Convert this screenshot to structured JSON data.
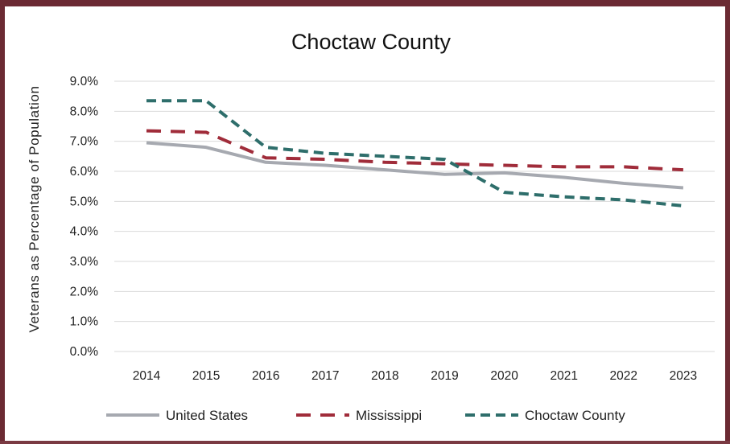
{
  "colors": {
    "frame": "#6b2a33",
    "grid": "#d9d9d9"
  },
  "chart_data": {
    "type": "line",
    "title": "Choctaw County",
    "xlabel": "",
    "ylabel": "Veterans as Percentage of Population",
    "x": [
      "2014",
      "2015",
      "2016",
      "2017",
      "2018",
      "2019",
      "2020",
      "2021",
      "2022",
      "2023"
    ],
    "ylim": [
      0,
      9
    ],
    "yticks": [
      "0.0%",
      "1.0%",
      "2.0%",
      "3.0%",
      "4.0%",
      "5.0%",
      "6.0%",
      "7.0%",
      "8.0%",
      "9.0%"
    ],
    "grid": true,
    "legend_position": "bottom",
    "series": [
      {
        "name": "United States",
        "color": "#a6a9b0",
        "style": "solid",
        "values": [
          6.95,
          6.8,
          6.3,
          6.2,
          6.05,
          5.9,
          5.95,
          5.8,
          5.6,
          5.45
        ]
      },
      {
        "name": "Mississippi",
        "color": "#a02c3a",
        "style": "dashed",
        "values": [
          7.35,
          7.3,
          6.45,
          6.4,
          6.3,
          6.25,
          6.2,
          6.15,
          6.15,
          6.05
        ]
      },
      {
        "name": "Choctaw County",
        "color": "#2e6e6b",
        "style": "dotted-dash",
        "values": [
          8.35,
          8.35,
          6.8,
          6.6,
          6.5,
          6.4,
          5.3,
          5.15,
          5.05,
          4.85
        ]
      }
    ]
  }
}
